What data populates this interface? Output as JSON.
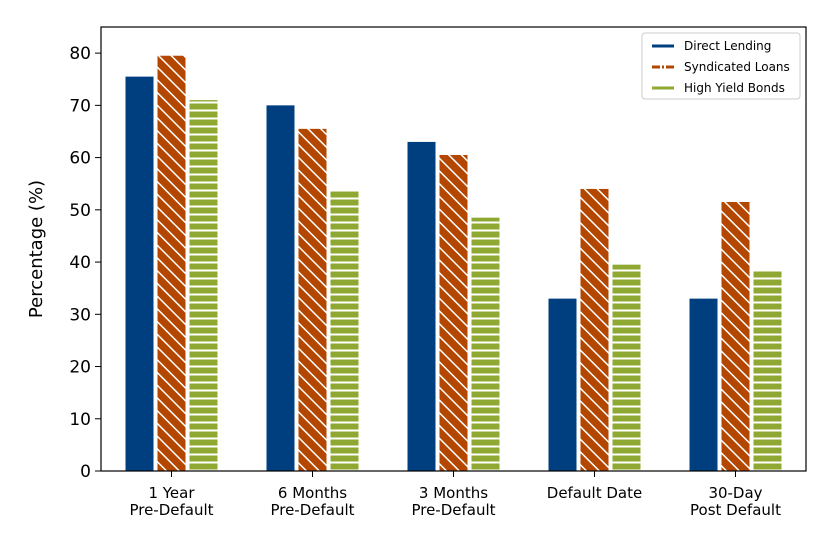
{
  "chart_data": {
    "type": "bar",
    "title": "",
    "xlabel": "",
    "ylabel": "Percentage (%)",
    "ylim": [
      0,
      85
    ],
    "yticks": [
      0,
      10,
      20,
      30,
      40,
      50,
      60,
      70,
      80
    ],
    "grid": false,
    "legend_position": "top-right",
    "categories": [
      [
        "1 Year",
        "Pre-Default"
      ],
      [
        "6 Months",
        "Pre-Default"
      ],
      [
        "3 Months",
        "Pre-Default"
      ],
      [
        "Default Date"
      ],
      [
        "30-Day",
        "Post Default"
      ]
    ],
    "series": [
      {
        "name": "Direct Lending",
        "values": [
          75.5,
          70,
          63,
          33,
          33
        ],
        "color": "#003f7f",
        "pattern": "solid"
      },
      {
        "name": "Syndicated Loans",
        "values": [
          79.5,
          65.5,
          60.5,
          54,
          51.5
        ],
        "color": "#b34700",
        "pattern": "diagonal-hatch"
      },
      {
        "name": "High Yield Bonds",
        "values": [
          71,
          53.5,
          48.5,
          39.5,
          38.5
        ],
        "color": "#8fa832",
        "pattern": "horizontal-hatch"
      }
    ]
  }
}
